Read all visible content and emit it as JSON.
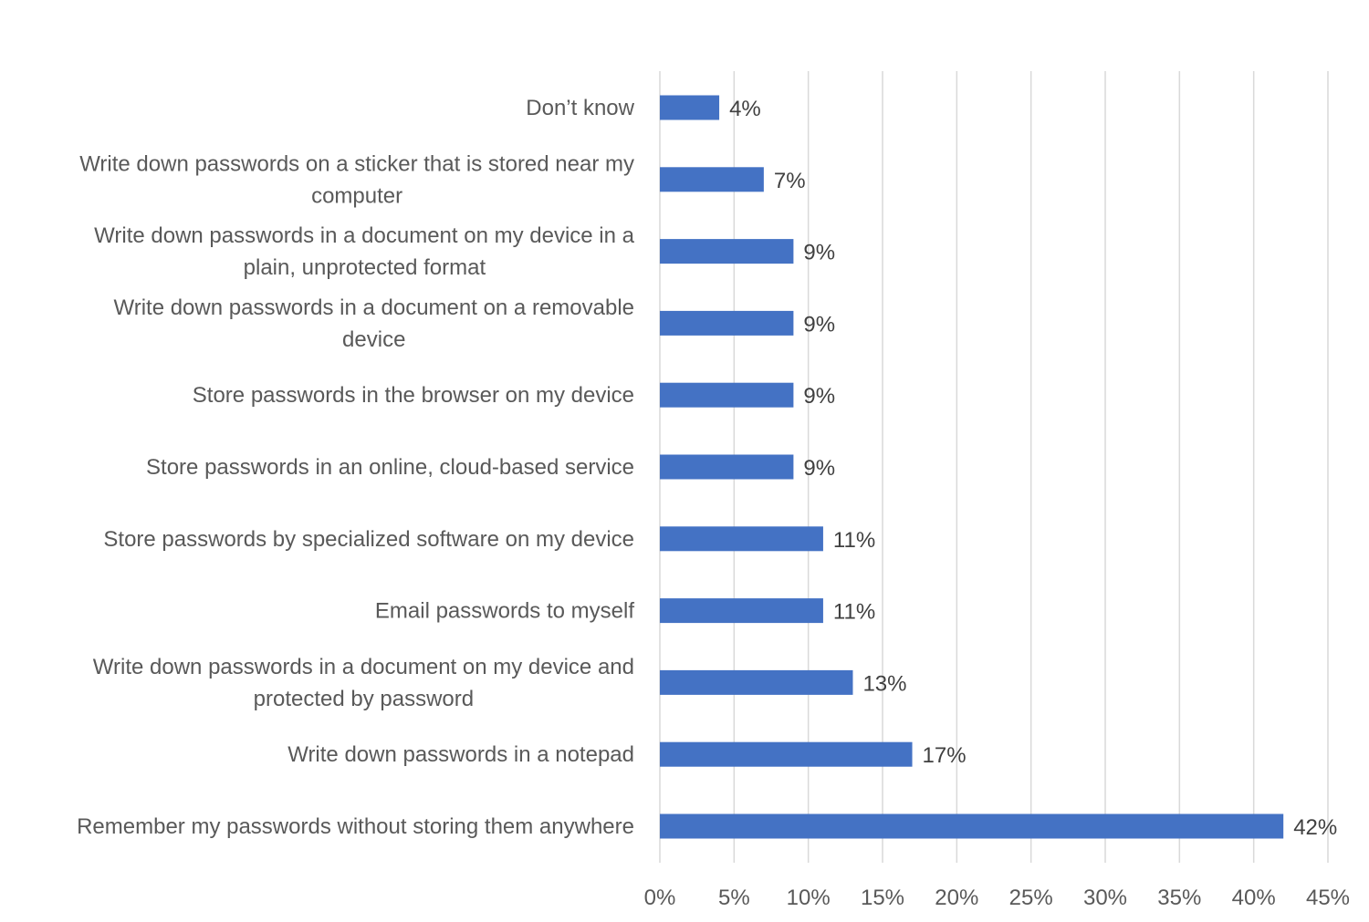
{
  "chart_data": {
    "type": "bar",
    "orientation": "horizontal",
    "categories": [
      "Don’t know",
      "Write down passwords on a sticker that is stored near my computer",
      "Write down passwords in a document on my device in a plain, unprotected format",
      "Write down passwords in a document on a removable device",
      "Store passwords in the browser on my device",
      "Store passwords in an online, cloud-based service",
      "Store passwords by specialized software on my device",
      "Email passwords to myself",
      "Write down passwords in a document on my device and protected by password",
      "Write down passwords in a notepad",
      "Remember my passwords without storing them anywhere"
    ],
    "category_lines": [
      [
        "Don’t know"
      ],
      [
        "Write down passwords on a sticker that is stored near my",
        "computer"
      ],
      [
        "Write down passwords in a document on my device in a",
        "plain, unprotected format"
      ],
      [
        "Write down passwords in a document on a removable",
        "device"
      ],
      [
        "Store passwords in the browser on my device"
      ],
      [
        "Store passwords in an online, cloud-based service"
      ],
      [
        "Store passwords by specialized software on my device"
      ],
      [
        "Email passwords to myself"
      ],
      [
        "Write down passwords in a document on my device and",
        "protected by password"
      ],
      [
        "Write down passwords in a notepad"
      ],
      [
        "Remember my passwords without storing them anywhere"
      ]
    ],
    "values": [
      4,
      7,
      9,
      9,
      9,
      9,
      11,
      11,
      13,
      17,
      42
    ],
    "data_labels": [
      "4%",
      "7%",
      "9%",
      "9%",
      "9%",
      "9%",
      "11%",
      "11%",
      "13%",
      "17%",
      "42%"
    ],
    "xlim": [
      0,
      45
    ],
    "xticks": [
      0,
      5,
      10,
      15,
      20,
      25,
      30,
      35,
      40,
      45
    ],
    "xtick_labels": [
      "0%",
      "5%",
      "10%",
      "15%",
      "20%",
      "25%",
      "30%",
      "35%",
      "40%",
      "45%"
    ],
    "grid": true,
    "legend": false,
    "bar_color": "#4472C4",
    "grid_color": "#D9D9D9"
  }
}
